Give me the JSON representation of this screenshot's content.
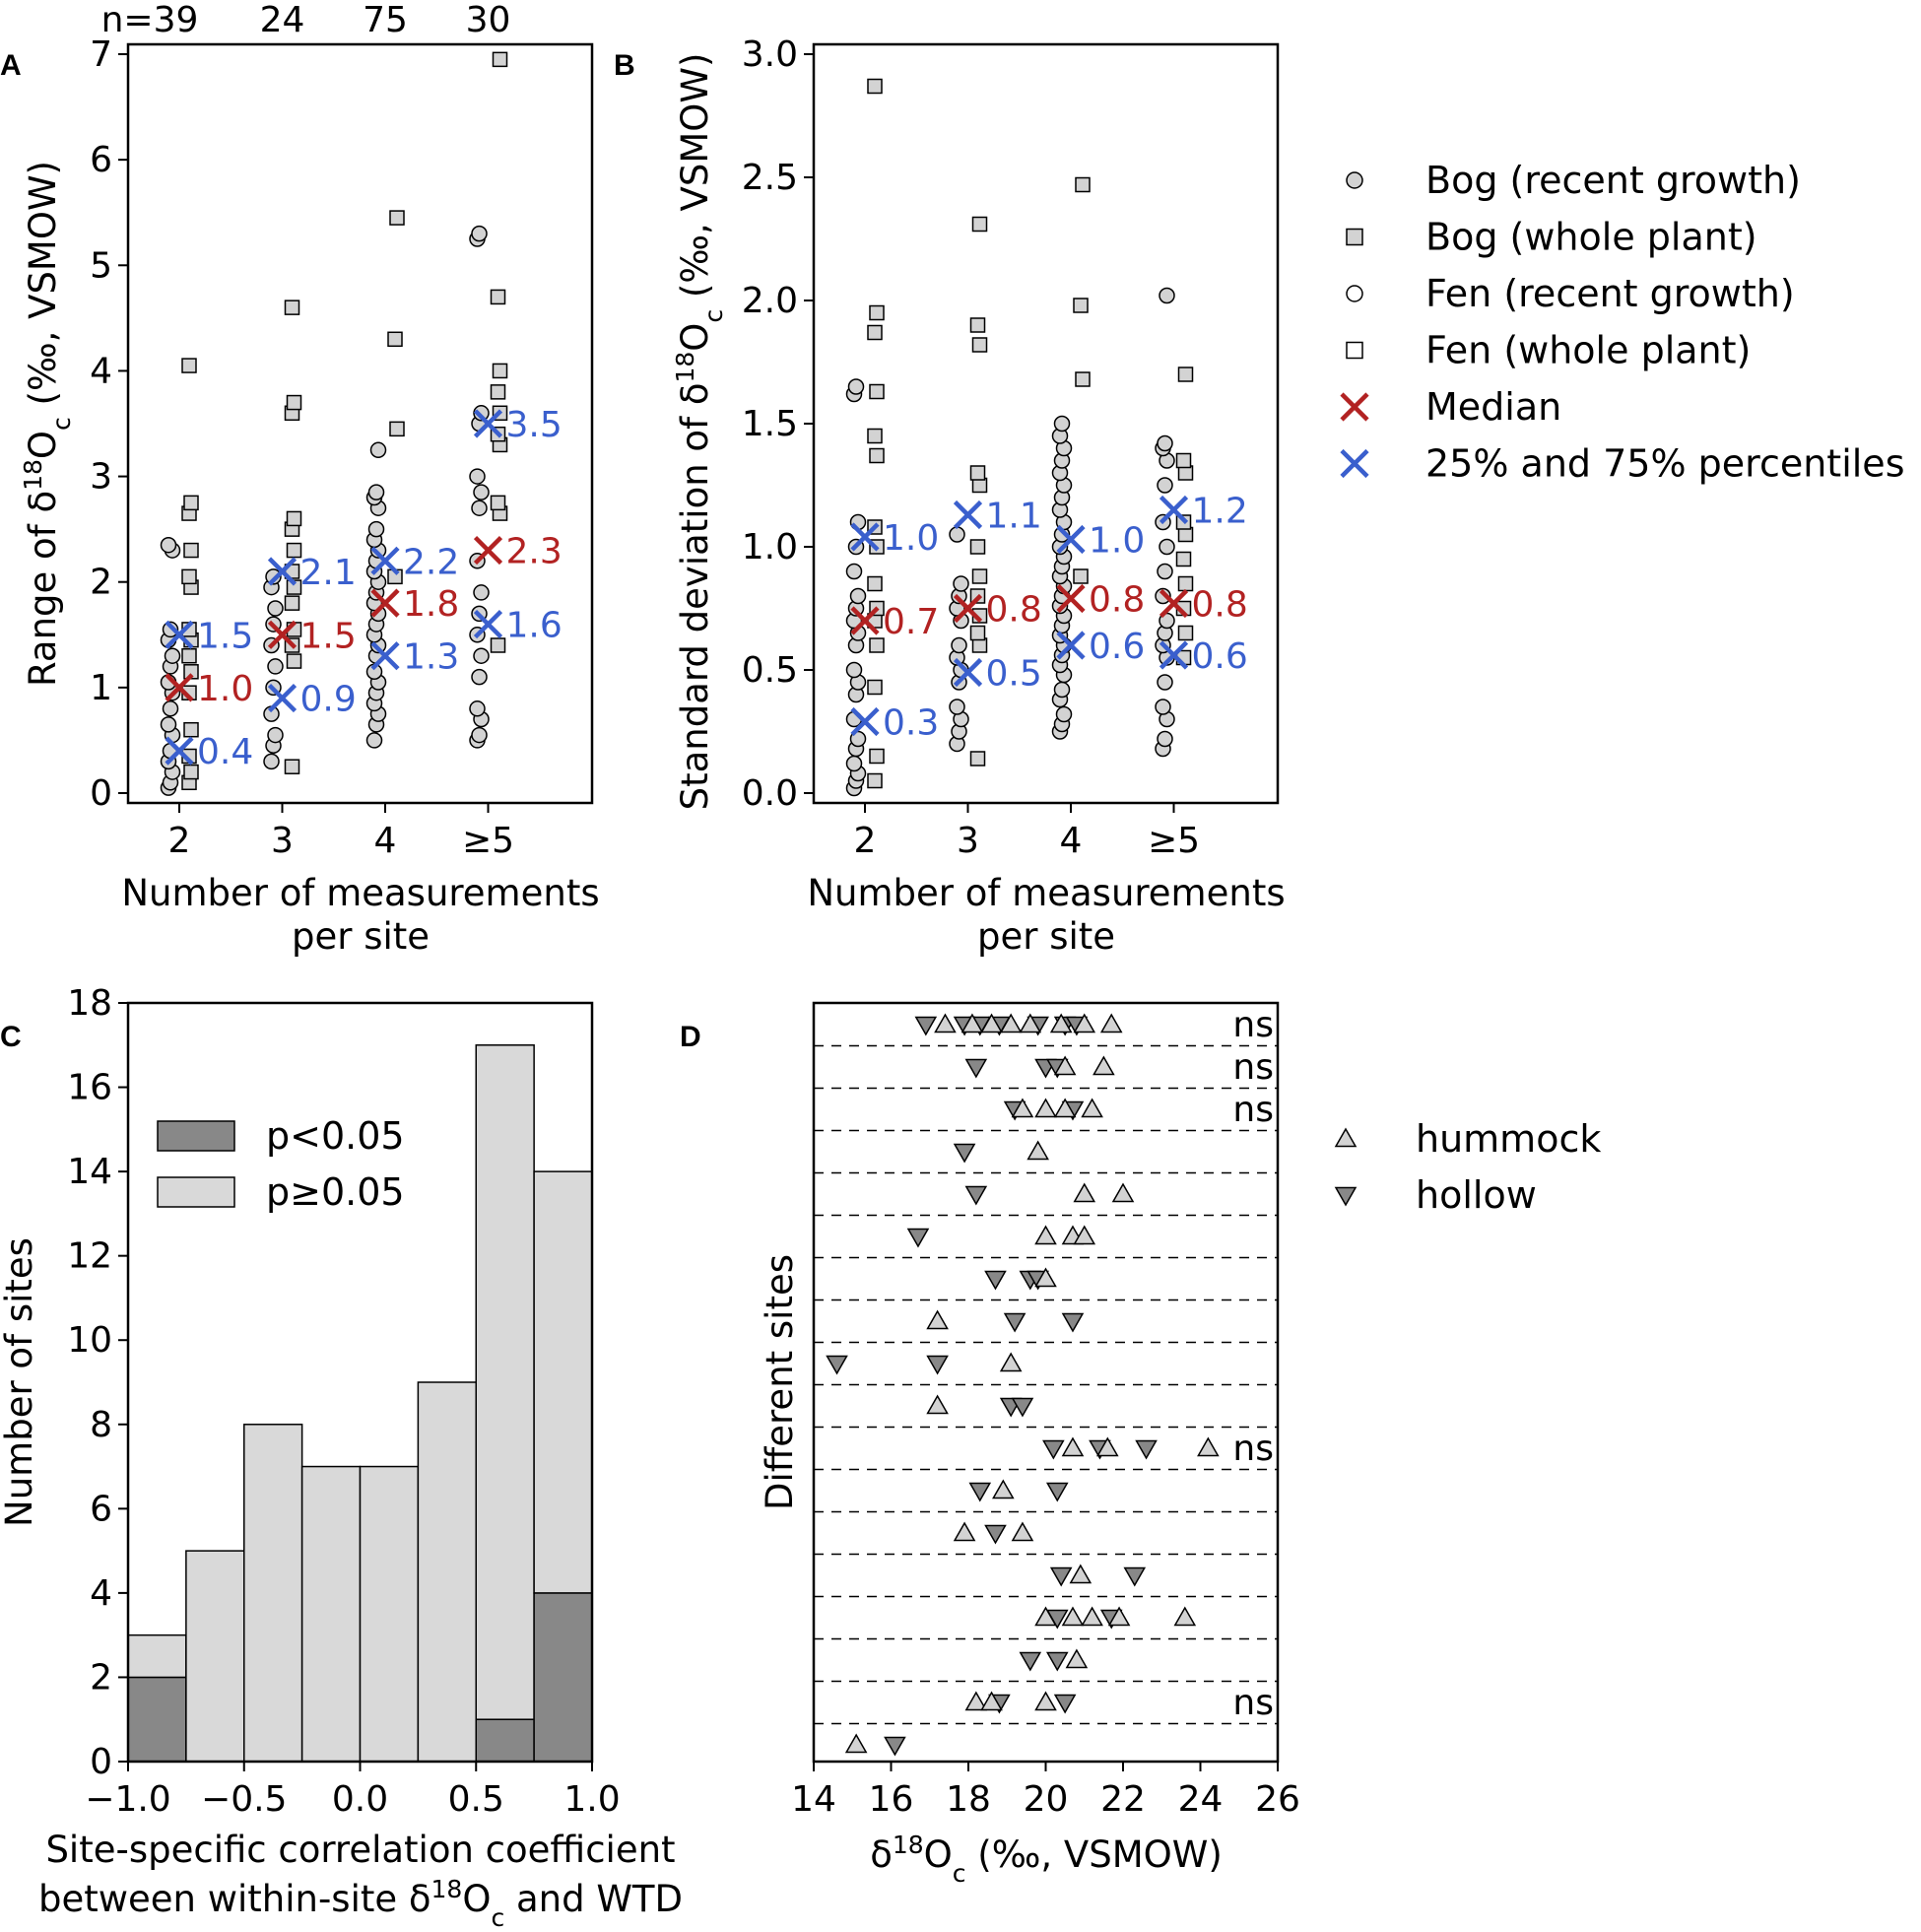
{
  "colors": {
    "median": "#b22222",
    "percentile": "#3a5fcd",
    "bog": "#d3d3d3",
    "fen": "#ffffff",
    "sig": "#888888",
    "nonsig": "#d9d9d9"
  },
  "chart_data": [
    {
      "panel": "A",
      "type": "scatter",
      "ylabel_main": "Range of δ",
      "ylabel_sup": "18",
      "ylabel_tail": "O",
      "ylabel_sub": "c",
      "ylabel_units": " (‰, VSMOW)",
      "xlabel": [
        "Number of measurements",
        "per site"
      ],
      "categories": [
        "2",
        "3",
        "4",
        "≥5"
      ],
      "n_labels": [
        "n=39",
        "24",
        "75",
        "30"
      ],
      "ylim": [
        0,
        7
      ],
      "yticks": [
        0,
        1,
        2,
        3,
        4,
        5,
        6,
        7
      ],
      "median": [
        {
          "cat": 0,
          "y": 1.0,
          "label": "1.0"
        },
        {
          "cat": 1,
          "y": 1.5,
          "label": "1.5"
        },
        {
          "cat": 2,
          "y": 1.8,
          "label": "1.8"
        },
        {
          "cat": 3,
          "y": 2.3,
          "label": "2.3"
        }
      ],
      "percentiles": [
        {
          "cat": 0,
          "y": 0.4,
          "label": "0.4"
        },
        {
          "cat": 0,
          "y": 1.5,
          "label": "1.5"
        },
        {
          "cat": 1,
          "y": 0.9,
          "label": "0.9"
        },
        {
          "cat": 1,
          "y": 2.1,
          "label": "2.1"
        },
        {
          "cat": 2,
          "y": 1.3,
          "label": "1.3"
        },
        {
          "cat": 2,
          "y": 2.2,
          "label": "2.2"
        },
        {
          "cat": 3,
          "y": 1.6,
          "label": "1.6"
        },
        {
          "cat": 3,
          "y": 3.5,
          "label": "3.5"
        }
      ],
      "circles": [
        [
          0.05,
          0.1,
          0.2,
          0.3,
          0.4,
          0.55,
          0.65,
          0.8,
          0.95,
          1.05,
          1.2,
          1.3,
          1.45,
          1.55,
          2.3,
          2.35
        ],
        [
          0.3,
          0.45,
          0.55,
          0.75,
          1.0,
          1.2,
          1.4,
          1.6,
          1.75,
          1.95,
          2.05
        ],
        [
          0.5,
          0.65,
          0.75,
          0.85,
          0.95,
          1.05,
          1.15,
          1.3,
          1.4,
          1.5,
          1.6,
          1.7,
          1.8,
          1.9,
          2.0,
          2.1,
          2.2,
          2.3,
          2.4,
          2.5,
          2.7,
          2.8,
          2.85,
          3.25
        ],
        [
          0.5,
          0.55,
          0.7,
          0.8,
          1.1,
          1.3,
          1.5,
          1.7,
          1.9,
          2.2,
          2.7,
          2.85,
          3.0,
          3.5,
          3.6,
          5.25,
          5.3
        ]
      ],
      "squares": [
        [
          0.1,
          0.2,
          0.35,
          0.6,
          0.95,
          1.15,
          1.3,
          1.45,
          1.55,
          1.95,
          2.05,
          2.3,
          2.65,
          2.75,
          4.05
        ],
        [
          0.25,
          1.25,
          1.4,
          1.55,
          1.8,
          1.95,
          2.1,
          2.3,
          2.5,
          2.6,
          3.6,
          3.7,
          4.6
        ],
        [
          2.05,
          3.45,
          4.3,
          5.45
        ],
        [
          1.4,
          2.65,
          2.75,
          3.3,
          3.4,
          3.6,
          3.8,
          4.0,
          4.7,
          6.95
        ]
      ]
    },
    {
      "panel": "B",
      "type": "scatter",
      "ylabel_main": "Standard deviation of δ",
      "ylabel_sup": "18",
      "ylabel_tail": "O",
      "ylabel_sub": "c",
      "ylabel_units": " (‰, VSMOW)",
      "xlabel": [
        "Number of measurements",
        "per site"
      ],
      "categories": [
        "2",
        "3",
        "4",
        "≥5"
      ],
      "ylim": [
        0,
        3.0
      ],
      "yticks": [
        0.0,
        0.5,
        1.0,
        1.5,
        2.0,
        2.5,
        3.0
      ],
      "yticklabels": [
        "0.0",
        "0.5",
        "1.0",
        "1.5",
        "2.0",
        "2.5",
        "3.0"
      ],
      "median": [
        {
          "cat": 0,
          "y": 0.7,
          "label": "0.7"
        },
        {
          "cat": 1,
          "y": 0.75,
          "label": "0.8"
        },
        {
          "cat": 2,
          "y": 0.79,
          "label": "0.8"
        },
        {
          "cat": 3,
          "y": 0.77,
          "label": "0.8"
        }
      ],
      "percentiles": [
        {
          "cat": 0,
          "y": 0.29,
          "label": "0.3"
        },
        {
          "cat": 0,
          "y": 1.04,
          "label": "1.0"
        },
        {
          "cat": 1,
          "y": 0.49,
          "label": "0.5"
        },
        {
          "cat": 1,
          "y": 1.13,
          "label": "1.1"
        },
        {
          "cat": 2,
          "y": 0.6,
          "label": "0.6"
        },
        {
          "cat": 2,
          "y": 1.03,
          "label": "1.0"
        },
        {
          "cat": 3,
          "y": 0.56,
          "label": "0.6"
        },
        {
          "cat": 3,
          "y": 1.15,
          "label": "1.2"
        }
      ],
      "circles": [
        [
          0.02,
          0.05,
          0.08,
          0.12,
          0.18,
          0.22,
          0.3,
          0.4,
          0.45,
          0.5,
          0.6,
          0.65,
          0.7,
          0.75,
          0.8,
          0.9,
          1.0,
          1.1,
          1.62,
          1.65
        ],
        [
          0.2,
          0.25,
          0.3,
          0.35,
          0.45,
          0.5,
          0.55,
          0.6,
          0.7,
          0.75,
          0.8,
          0.85,
          1.05
        ],
        [
          0.25,
          0.28,
          0.32,
          0.38,
          0.42,
          0.48,
          0.52,
          0.56,
          0.6,
          0.64,
          0.68,
          0.72,
          0.76,
          0.8,
          0.84,
          0.88,
          0.92,
          0.96,
          1.0,
          1.05,
          1.1,
          1.15,
          1.2,
          1.25,
          1.3,
          1.35,
          1.4,
          1.45,
          1.5
        ],
        [
          0.18,
          0.22,
          0.3,
          0.35,
          0.45,
          0.55,
          0.6,
          0.65,
          0.7,
          0.8,
          0.9,
          1.0,
          1.1,
          1.25,
          1.35,
          1.4,
          1.42,
          2.02
        ]
      ],
      "squares": [
        [
          0.05,
          0.15,
          0.43,
          0.6,
          0.7,
          0.75,
          0.85,
          1.0,
          1.08,
          1.37,
          1.45,
          1.63,
          1.87,
          1.95,
          2.87
        ],
        [
          0.14,
          0.6,
          0.65,
          0.72,
          0.8,
          0.88,
          1.0,
          1.25,
          1.3,
          1.82,
          1.9,
          2.31
        ],
        [
          0.88,
          1.68,
          1.98,
          2.47
        ],
        [
          0.55,
          0.65,
          0.75,
          0.85,
          0.95,
          1.05,
          1.1,
          1.3,
          1.35,
          1.7
        ]
      ]
    },
    {
      "panel": "C",
      "type": "bar",
      "ylabel": "Number of sites",
      "xlabel_line1": "Site-specific correlation coefficient",
      "xlabel_line2_pre": "between within-site δ",
      "xlabel_line2_sup": "18",
      "xlabel_line2_mid": "O",
      "xlabel_line2_sub": "c",
      "xlabel_line2_post": " and WTD",
      "bin_edges": [
        -1.0,
        -0.75,
        -0.5,
        -0.25,
        0.0,
        0.25,
        0.5,
        0.75,
        1.0
      ],
      "xticks": [
        -1.0,
        -0.5,
        0.0,
        0.5,
        1.0
      ],
      "xticklabels": [
        "−1.0",
        "−0.5",
        "0.0",
        "0.5",
        "1.0"
      ],
      "ylim": [
        0,
        18
      ],
      "yticks": [
        0,
        2,
        4,
        6,
        8,
        10,
        12,
        14,
        16,
        18
      ],
      "series": [
        {
          "name": "p<0.05",
          "values": [
            2,
            0,
            0,
            0,
            0,
            0,
            1,
            4
          ]
        },
        {
          "name": "p≥0.05",
          "values": [
            1,
            5,
            8,
            7,
            7,
            9,
            16,
            10
          ]
        }
      ]
    },
    {
      "panel": "D",
      "type": "scatter",
      "ylabel": "Different sites",
      "xlabel_pre": "δ",
      "xlabel_sup": "18",
      "xlabel_mid": "O",
      "xlabel_sub": "c",
      "xlabel_post": " (‰, VSMOW)",
      "xlim": [
        14,
        26
      ],
      "xticks": [
        14,
        16,
        18,
        20,
        22,
        24,
        26
      ],
      "ns_label": "ns",
      "rows": [
        {
          "hummock": [
            17.4,
            18.1,
            18.6,
            19.1,
            19.6,
            20.4,
            21.0,
            21.7
          ],
          "hollow": [
            16.9,
            17.9,
            18.3,
            18.8,
            19.8,
            20.5,
            20.8
          ],
          "ns": true
        },
        {
          "hummock": [
            20.5,
            21.5
          ],
          "hollow": [
            18.2,
            20.0,
            20.3
          ],
          "ns": true
        },
        {
          "hummock": [
            19.4,
            20.0,
            20.5,
            21.2
          ],
          "hollow": [
            19.2,
            20.7
          ],
          "ns": true
        },
        {
          "hummock": [
            19.8
          ],
          "hollow": [
            17.9
          ],
          "ns": false
        },
        {
          "hummock": [
            21.0,
            22.0
          ],
          "hollow": [
            18.2
          ],
          "ns": false
        },
        {
          "hummock": [
            20.0,
            20.7,
            21.0
          ],
          "hollow": [
            16.7
          ],
          "ns": false
        },
        {
          "hummock": [
            20.0
          ],
          "hollow": [
            18.7,
            19.6,
            19.8
          ],
          "ns": false
        },
        {
          "hummock": [
            17.2
          ],
          "hollow": [
            19.2,
            20.7
          ],
          "ns": false
        },
        {
          "hummock": [
            19.1
          ],
          "hollow": [
            14.6,
            17.2
          ],
          "ns": false
        },
        {
          "hummock": [
            17.2
          ],
          "hollow": [
            19.1,
            19.4
          ],
          "ns": false
        },
        {
          "hummock": [
            20.7,
            21.6,
            24.2
          ],
          "hollow": [
            20.2,
            21.4,
            22.6
          ],
          "ns": true
        },
        {
          "hummock": [
            18.9
          ],
          "hollow": [
            18.3,
            20.3
          ],
          "ns": false
        },
        {
          "hummock": [
            17.9,
            19.4
          ],
          "hollow": [
            18.7
          ],
          "ns": false
        },
        {
          "hummock": [
            20.9
          ],
          "hollow": [
            20.4,
            22.3
          ],
          "ns": false
        },
        {
          "hummock": [
            20.0,
            20.7,
            21.2,
            21.9,
            23.6
          ],
          "hollow": [
            20.3,
            21.7
          ],
          "ns": false
        },
        {
          "hummock": [
            20.8
          ],
          "hollow": [
            19.6,
            20.3
          ],
          "ns": false
        },
        {
          "hummock": [
            18.2,
            18.6,
            20.0
          ],
          "hollow": [
            18.8,
            20.5
          ],
          "ns": true
        },
        {
          "hummock": [
            15.1
          ],
          "hollow": [
            16.1
          ],
          "ns": false
        }
      ]
    }
  ],
  "legend_ab": [
    {
      "marker": "circle",
      "fill": "bog",
      "label": "Bog (recent growth)"
    },
    {
      "marker": "square",
      "fill": "bog",
      "label": "Bog (whole plant)"
    },
    {
      "marker": "circle",
      "fill": "fen",
      "label": "Fen (recent growth)"
    },
    {
      "marker": "square",
      "fill": "fen",
      "label": "Fen (whole plant)"
    },
    {
      "marker": "x",
      "fill": "median",
      "label": "Median"
    },
    {
      "marker": "x",
      "fill": "percentile",
      "label": "25% and 75% percentiles"
    }
  ],
  "legend_d": [
    {
      "marker": "tri-up",
      "label": "hummock"
    },
    {
      "marker": "tri-down",
      "label": "hollow"
    }
  ]
}
